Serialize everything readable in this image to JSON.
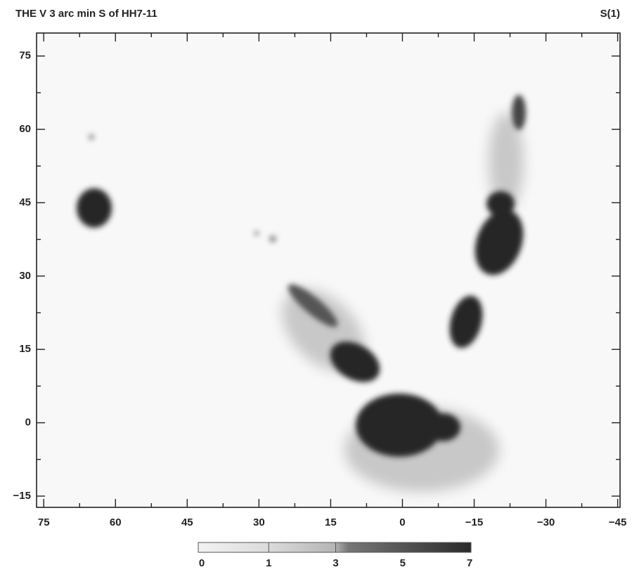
{
  "chart_data": {
    "type": "image",
    "title": "THE V 3 arc min S of HH7-11",
    "label_right": "S(1)",
    "xlim": [
      76.5,
      -45.5
    ],
    "xticks": [
      75,
      60,
      45,
      30,
      15,
      0,
      {
        "value": -15,
        "label": "−15"
      },
      {
        "value": -30,
        "label": "−30"
      },
      {
        "value": -45,
        "label": "−45"
      }
    ],
    "ylim": [
      -17.3,
      79.7
    ],
    "yticks": [
      {
        "value": -15,
        "label": "−15"
      },
      0,
      15,
      30,
      45,
      60,
      75
    ],
    "colorbar": {
      "labels": [
        0,
        1,
        3,
        5,
        7
      ]
    }
  }
}
